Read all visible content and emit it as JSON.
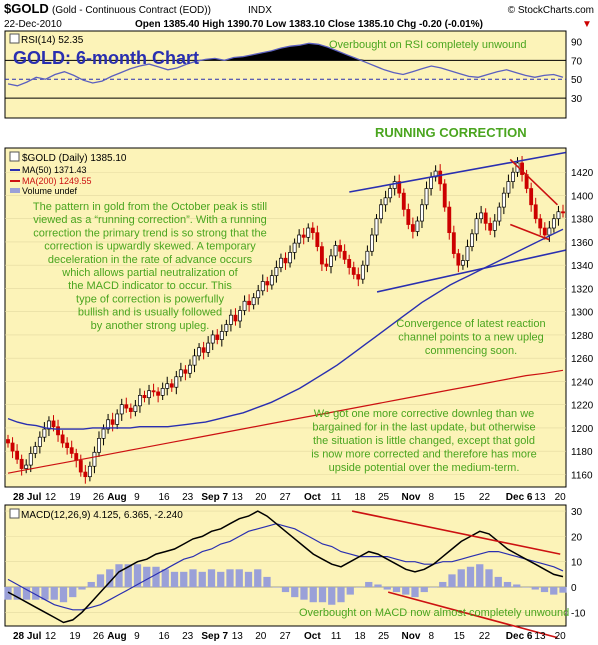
{
  "header": {
    "symbol": "$GOLD",
    "name": "(Gold - Continuous Contract (EOD))",
    "exchange": "INDX",
    "date": "22-Dec-2010",
    "ohlc": "Open 1385.40  High 1390.70  Low 1383.10  Close 1385.10  Chg -0.20 (-0.01%)",
    "ohlc_arrow": "▼",
    "credit": "© StockCharts.com"
  },
  "colors": {
    "panel_bg": "#fcf3b8",
    "green_text": "#4aa51f",
    "blue_line": "#2a2fb0",
    "red_line": "#cc1111",
    "up_candle": "#ffffff",
    "down_candle": "#cc0000",
    "hist": "#9aa0d8"
  },
  "annotations": {
    "title": "GOLD: 6-month Chart",
    "rsi_note": "Overbought on RSI completely unwound",
    "running_correction": "RUNNING CORRECTION",
    "pattern_text": [
      "The pattern in gold from the October peak is still",
      "viewed as a “running correction”. With a running",
      "correction the primary trend is so strong that the",
      "correction is upwardly skewed. A temporary",
      "deceleration in the rate of advance occurs",
      "which allows partial neutralization of",
      "the MACD indicator to occur. This",
      "type of correction is powerfully",
      "bullish and is usually followed",
      "by another strong upleg."
    ],
    "convergence_text": [
      "Convergence of latest reaction",
      "channel points to a new upleg",
      "commencing soon."
    ],
    "update_text": [
      "We got one more corrective downleg than we",
      "bargained for in the last update, but otherwise",
      "the situation is little changed, except that gold",
      "is now more corrected and therefore has more",
      "upside potential over the medium-term."
    ],
    "macd_note": "Overbought on MACD now almost completely unwound"
  },
  "chart_data": {
    "type": "candlestick",
    "x_labels": [
      "28 Jul",
      "12",
      "19",
      "26",
      "Aug",
      "9",
      "16",
      "23",
      "Sep 7",
      "13",
      "20",
      "27",
      "Oct",
      "11",
      "18",
      "25",
      "Nov",
      "8",
      "15",
      "22",
      "Dec 6",
      "13",
      "20"
    ],
    "rsi_panel": {
      "label": "RSI(14) 52.35",
      "ylim": [
        10,
        100
      ],
      "ticks": [
        30,
        50,
        70,
        90
      ],
      "overbought": 70,
      "oversold": 30,
      "values": [
        45,
        43,
        47,
        52,
        50,
        55,
        58,
        54,
        49,
        46,
        48,
        53,
        57,
        61,
        64,
        66,
        63,
        60,
        62,
        66,
        69,
        71,
        72,
        70,
        73,
        74,
        76,
        78,
        80,
        83,
        85,
        86,
        88,
        87,
        84,
        80,
        76,
        72,
        68,
        64,
        60,
        57,
        55,
        58,
        61,
        64,
        62,
        59,
        56,
        53,
        52,
        55,
        58,
        60,
        57,
        54,
        52,
        54,
        55,
        52
      ]
    },
    "price_panel": {
      "legend": [
        "$GOLD (Daily) 1385.10",
        "MA(50) 1371.43",
        "MA(200) 1249.55",
        "Volume undef"
      ],
      "ylim": [
        1150,
        1440
      ],
      "ticks": [
        1160,
        1180,
        1200,
        1220,
        1240,
        1260,
        1280,
        1300,
        1320,
        1340,
        1360,
        1380,
        1400,
        1420
      ],
      "close": [
        1187,
        1180,
        1173,
        1165,
        1168,
        1178,
        1184,
        1192,
        1199,
        1206,
        1201,
        1194,
        1187,
        1183,
        1178,
        1172,
        1162,
        1158,
        1167,
        1179,
        1191,
        1199,
        1207,
        1203,
        1212,
        1220,
        1217,
        1214,
        1219,
        1228,
        1226,
        1232,
        1231,
        1228,
        1234,
        1238,
        1235,
        1244,
        1250,
        1247,
        1254,
        1262,
        1269,
        1265,
        1273,
        1280,
        1276,
        1283,
        1289,
        1297,
        1292,
        1301,
        1309,
        1306,
        1312,
        1318,
        1326,
        1323,
        1331,
        1338,
        1346,
        1342,
        1351,
        1359,
        1366,
        1364,
        1372,
        1368,
        1356,
        1341,
        1339,
        1348,
        1357,
        1352,
        1345,
        1338,
        1332,
        1328,
        1340,
        1352,
        1366,
        1380,
        1392,
        1398,
        1406,
        1412,
        1402,
        1388,
        1375,
        1369,
        1378,
        1392,
        1406,
        1416,
        1421,
        1410,
        1390,
        1368,
        1350,
        1340,
        1344,
        1356,
        1367,
        1380,
        1385,
        1376,
        1370,
        1378,
        1390,
        1402,
        1412,
        1420,
        1428,
        1418,
        1406,
        1392,
        1380,
        1372,
        1366,
        1372,
        1380,
        1386,
        1385
      ],
      "ma50": [
        1208,
        1205,
        1203,
        1202,
        1200,
        1199,
        1199,
        1199,
        1199,
        1200,
        1200,
        1200,
        1200,
        1200,
        1201,
        1201,
        1201,
        1201,
        1202,
        1203,
        1204,
        1205,
        1207,
        1209,
        1211,
        1213,
        1216,
        1219,
        1222,
        1226,
        1230,
        1234,
        1239,
        1244,
        1249,
        1254,
        1260,
        1266,
        1272,
        1278,
        1284,
        1290,
        1296,
        1302,
        1308,
        1313,
        1318,
        1323,
        1327,
        1331,
        1335,
        1339,
        1343,
        1347,
        1351,
        1355,
        1359,
        1363,
        1367,
        1371
      ],
      "ma200": [
        1161,
        1164,
        1167,
        1170,
        1173,
        1176,
        1179,
        1182,
        1185,
        1188,
        1191,
        1194,
        1197,
        1200,
        1203,
        1206,
        1209,
        1212,
        1215,
        1218,
        1221,
        1224,
        1227,
        1230,
        1233,
        1236,
        1239,
        1242,
        1245,
        1247,
        1249.55
      ],
      "channel_upper": [
        [
          1320,
          1403
        ],
        [
          1425,
          1437
        ]
      ],
      "channel_lower": [
        [
          1302,
          1317
        ],
        [
          1425,
          1353
        ]
      ],
      "wedge_upper": [
        [
          1409,
          1431
        ],
        [
          1421,
          1392
        ]
      ],
      "wedge_lower": [
        [
          1409,
          1375
        ],
        [
          1421,
          1362
        ]
      ]
    },
    "macd_panel": {
      "label": "MACD(12,26,9) 4.125, 6.365, -2.240",
      "ylim": [
        -15,
        32
      ],
      "ticks": [
        -10,
        0,
        10,
        20,
        30
      ],
      "macd": [
        -2,
        -4,
        -6,
        -8,
        -10,
        -12,
        -14,
        -13,
        -10,
        -6,
        -2,
        2,
        6,
        8,
        10,
        11,
        13,
        14,
        15,
        17,
        19,
        20,
        22,
        23,
        25,
        27,
        28,
        30,
        28,
        25,
        22,
        19,
        16,
        13,
        11,
        9,
        8,
        10,
        12,
        14,
        13,
        11,
        9,
        7,
        6,
        7,
        9,
        12,
        15,
        18,
        20,
        22,
        21,
        18,
        15,
        13,
        11,
        9,
        7,
        5,
        4.125
      ],
      "signal": [
        3,
        1,
        -1,
        -3,
        -5,
        -7,
        -8,
        -9,
        -9,
        -8,
        -7,
        -5,
        -3,
        -1,
        1,
        3,
        5,
        7,
        9,
        11,
        12,
        14,
        15,
        17,
        18,
        20,
        22,
        23,
        24,
        25,
        24,
        23,
        21,
        19,
        17,
        16,
        14,
        13,
        12,
        12,
        12,
        12,
        11,
        10,
        10,
        9,
        9,
        10,
        10,
        11,
        12,
        13,
        14,
        14,
        13,
        12,
        11,
        10,
        9,
        8,
        6.365
      ],
      "histogram": [
        -5,
        -5,
        -5,
        -5,
        -5,
        -5,
        -6,
        -4,
        -1,
        2,
        5,
        7,
        9,
        9,
        9,
        8,
        8,
        7,
        6,
        6,
        7,
        6,
        7,
        6,
        7,
        7,
        6,
        7,
        4,
        0,
        -2,
        -4,
        -5,
        -6,
        -6,
        -7,
        -6,
        -3,
        0,
        2,
        1,
        -1,
        -2,
        -3,
        -4,
        -2,
        0,
        2,
        5,
        7,
        8,
        9,
        7,
        4,
        2,
        1,
        0,
        -1,
        -2,
        -3,
        -2.24
      ],
      "trend_upper": [
        [
          1333,
          30
        ],
        [
          1421,
          13
        ]
      ],
      "trend_lower": [
        [
          1330,
          -2
        ],
        [
          1421,
          -20
        ]
      ]
    }
  }
}
